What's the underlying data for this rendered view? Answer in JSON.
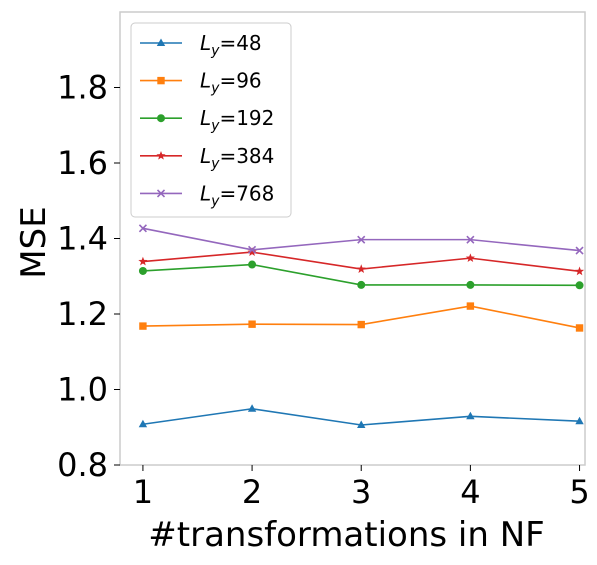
{
  "chart_data": {
    "type": "line",
    "title": "",
    "xlabel": "#transformations in NF",
    "ylabel": "MSE",
    "x": [
      1,
      2,
      3,
      4,
      5
    ],
    "xticks": [
      "1",
      "2",
      "3",
      "4",
      "5"
    ],
    "xlim": [
      0.79,
      5.05
    ],
    "ylim": [
      0.8,
      2.0
    ],
    "yticks": [
      "0.8",
      "1.0",
      "1.2",
      "1.4",
      "1.6",
      "1.8"
    ],
    "grid": false,
    "legend_position": "top-left",
    "series": [
      {
        "label_base": "L",
        "label_sub": "y",
        "label_value": "=48",
        "color": "#1f77b4",
        "marker": "triangle",
        "values": [
          0.908,
          0.949,
          0.906,
          0.929,
          0.916
        ]
      },
      {
        "label_base": "L",
        "label_sub": "y",
        "label_value": "=96",
        "color": "#ff7f0e",
        "marker": "square",
        "values": [
          1.168,
          1.173,
          1.172,
          1.221,
          1.163
        ]
      },
      {
        "label_base": "L",
        "label_sub": "y",
        "label_value": "=192",
        "color": "#2ca02c",
        "marker": "circle",
        "values": [
          1.314,
          1.331,
          1.277,
          1.277,
          1.276
        ]
      },
      {
        "label_base": "L",
        "label_sub": "y",
        "label_value": "=384",
        "color": "#d62728",
        "marker": "star",
        "values": [
          1.339,
          1.364,
          1.319,
          1.348,
          1.313
        ]
      },
      {
        "label_base": "L",
        "label_sub": "y",
        "label_value": "=768",
        "color": "#9467bd",
        "marker": "x",
        "values": [
          1.427,
          1.37,
          1.397,
          1.397,
          1.368
        ]
      }
    ]
  }
}
